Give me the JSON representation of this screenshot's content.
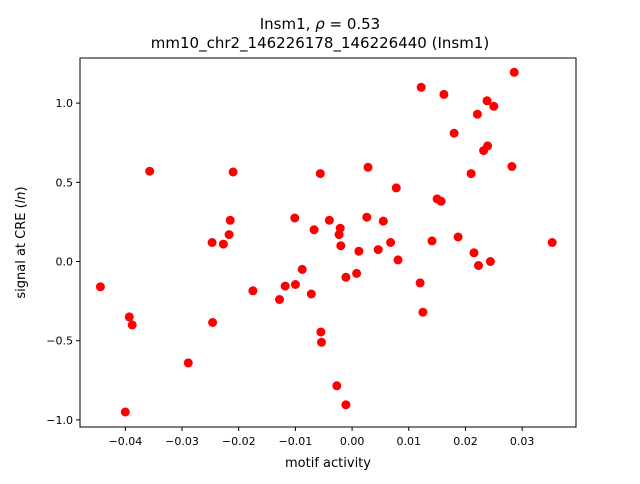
{
  "chart_data": {
    "type": "scatter",
    "title": "Insm1, ρ = 0.53",
    "title_line1": "Insm1, ",
    "title_rho": "ρ",
    "title_eq": " = 0.53",
    "subtitle": "mm10_chr2_146226178_146226440 (Insm1)",
    "xlabel": "motif activity",
    "ylabel_prefix": "signal at CRE (",
    "ylabel_italic": "ln",
    "ylabel_suffix": ")",
    "xlim": [
      -0.048,
      0.0395
    ],
    "ylim": [
      -1.045,
      1.285
    ],
    "xticks": [
      -0.04,
      -0.03,
      -0.02,
      -0.01,
      0.0,
      0.01,
      0.02,
      0.03
    ],
    "xtick_labels": [
      "−0.04",
      "−0.03",
      "−0.02",
      "−0.01",
      "0.00",
      "0.01",
      "0.02",
      "0.03"
    ],
    "yticks": [
      -1.0,
      -0.5,
      0.0,
      0.5,
      1.0
    ],
    "ytick_labels": [
      "−1.0",
      "−0.5",
      "0.0",
      "0.5",
      "1.0"
    ],
    "grid": false,
    "marker_color": "#ff0000",
    "points": [
      {
        "x": -0.0444,
        "y": -0.16
      },
      {
        "x": -0.0393,
        "y": -0.35
      },
      {
        "x": -0.0388,
        "y": -0.4
      },
      {
        "x": -0.04,
        "y": -0.95
      },
      {
        "x": -0.0357,
        "y": 0.57
      },
      {
        "x": -0.0289,
        "y": -0.64
      },
      {
        "x": -0.0247,
        "y": 0.12
      },
      {
        "x": -0.0246,
        "y": -0.385
      },
      {
        "x": -0.0227,
        "y": 0.11
      },
      {
        "x": -0.0217,
        "y": 0.17
      },
      {
        "x": -0.0215,
        "y": 0.26
      },
      {
        "x": -0.021,
        "y": 0.565
      },
      {
        "x": -0.0175,
        "y": -0.185
      },
      {
        "x": -0.0128,
        "y": -0.24
      },
      {
        "x": -0.0118,
        "y": -0.155
      },
      {
        "x": -0.0101,
        "y": 0.275
      },
      {
        "x": -0.01,
        "y": -0.145
      },
      {
        "x": -0.0088,
        "y": -0.05
      },
      {
        "x": -0.0072,
        "y": -0.205
      },
      {
        "x": -0.0067,
        "y": 0.2
      },
      {
        "x": -0.0056,
        "y": 0.555
      },
      {
        "x": -0.0055,
        "y": -0.445
      },
      {
        "x": -0.0054,
        "y": -0.51
      },
      {
        "x": -0.004,
        "y": 0.26
      },
      {
        "x": -0.0027,
        "y": -0.785
      },
      {
        "x": -0.0023,
        "y": 0.17
      },
      {
        "x": -0.0021,
        "y": 0.21
      },
      {
        "x": -0.002,
        "y": 0.1
      },
      {
        "x": -0.0011,
        "y": -0.1
      },
      {
        "x": -0.0011,
        "y": -0.905
      },
      {
        "x": 0.0008,
        "y": -0.075
      },
      {
        "x": 0.0012,
        "y": 0.065
      },
      {
        "x": 0.0026,
        "y": 0.28
      },
      {
        "x": 0.0028,
        "y": 0.595
      },
      {
        "x": 0.0046,
        "y": 0.075
      },
      {
        "x": 0.0055,
        "y": 0.255
      },
      {
        "x": 0.0068,
        "y": 0.12
      },
      {
        "x": 0.0078,
        "y": 0.465
      },
      {
        "x": 0.0081,
        "y": 0.01
      },
      {
        "x": 0.012,
        "y": -0.135
      },
      {
        "x": 0.0122,
        "y": 1.1
      },
      {
        "x": 0.0125,
        "y": -0.32
      },
      {
        "x": 0.0141,
        "y": 0.13
      },
      {
        "x": 0.015,
        "y": 0.395
      },
      {
        "x": 0.0157,
        "y": 0.38
      },
      {
        "x": 0.0162,
        "y": 1.055
      },
      {
        "x": 0.018,
        "y": 0.81
      },
      {
        "x": 0.0187,
        "y": 0.155
      },
      {
        "x": 0.021,
        "y": 0.555
      },
      {
        "x": 0.0215,
        "y": 0.055
      },
      {
        "x": 0.0221,
        "y": 0.93
      },
      {
        "x": 0.0223,
        "y": -0.025
      },
      {
        "x": 0.0232,
        "y": 0.7
      },
      {
        "x": 0.0238,
        "y": 1.015
      },
      {
        "x": 0.0239,
        "y": 0.73
      },
      {
        "x": 0.0244,
        "y": 0.0
      },
      {
        "x": 0.025,
        "y": 0.98
      },
      {
        "x": 0.0282,
        "y": 0.6
      },
      {
        "x": 0.0286,
        "y": 1.195
      },
      {
        "x": 0.0353,
        "y": 0.12
      }
    ]
  }
}
